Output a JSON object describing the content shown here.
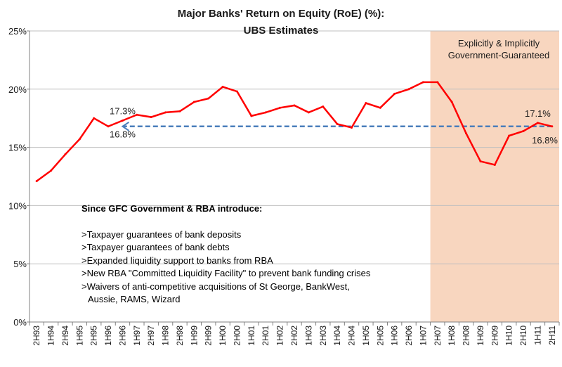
{
  "title_line1": "Major Banks' Return on Equity (RoE) (%):",
  "title_line2": "UBS Estimates",
  "shaded_region": {
    "label_line1": "Explicitly & Implicitly",
    "label_line2": "Government-Guaranteed",
    "color": "#f8d6bf"
  },
  "notes": {
    "heading": "Since GFC Government & RBA introduce:",
    "items": [
      ">Taxpayer guarantees of bank deposits",
      ">Taxpayer guarantees of bank debts",
      ">Expanded liquidity support to banks from RBA",
      ">New RBA \"Committed Liquidity Facility\" to prevent bank funding crises",
      ">Waivers of anti-competitive acquisitions of St George, BankWest,",
      "Aussie, RAMS, Wizard"
    ]
  },
  "chart_data": {
    "type": "line",
    "title": "Major Banks' Return on Equity (RoE) (%): UBS Estimates",
    "x": [
      "2H93",
      "1H94",
      "2H94",
      "1H95",
      "2H95",
      "1H96",
      "2H96",
      "1H97",
      "2H97",
      "1H98",
      "2H98",
      "1H99",
      "2H99",
      "1H00",
      "2H00",
      "1H01",
      "2H01",
      "1H02",
      "2H02",
      "1H03",
      "2H03",
      "1H04",
      "2H04",
      "1H05",
      "2H05",
      "1H06",
      "2H06",
      "1H07",
      "2H07",
      "1H08",
      "2H08",
      "1H09",
      "2H09",
      "1H10",
      "2H10",
      "1H11",
      "2H11"
    ],
    "series": [
      {
        "color": "#ff0000",
        "values": [
          12.1,
          13.0,
          14.4,
          15.7,
          17.5,
          16.8,
          17.3,
          17.8,
          17.6,
          18.0,
          18.1,
          18.9,
          19.2,
          20.2,
          19.8,
          17.7,
          18.0,
          18.4,
          18.6,
          18.0,
          18.5,
          17.0,
          16.7,
          18.8,
          18.4,
          19.6,
          20.0,
          20.6,
          20.6,
          18.9,
          16.2,
          13.8,
          13.5,
          16.0,
          16.4,
          17.1,
          16.8
        ]
      }
    ],
    "reference_arrow": {
      "from_x": "2H11",
      "to_x": "2H96",
      "value": 16.8,
      "color": "#4a7ebb",
      "style": "dashed"
    },
    "annotations": [
      {
        "text": "17.3%",
        "x": "2H96",
        "position": "above"
      },
      {
        "text": "16.8%",
        "x": "2H96",
        "position": "below"
      },
      {
        "text": "17.1%",
        "x": "1H11",
        "position": "above"
      },
      {
        "text": "16.8%",
        "x": "2H11",
        "position": "below"
      }
    ],
    "shaded_from": "2H07",
    "shaded_to": "2H11",
    "ylim": [
      0,
      25
    ],
    "yticks": [
      "0%",
      "5%",
      "10%",
      "15%",
      "20%",
      "25%"
    ],
    "ytick_values": [
      0,
      5,
      10,
      15,
      20,
      25
    ],
    "grid": "horizontal"
  }
}
